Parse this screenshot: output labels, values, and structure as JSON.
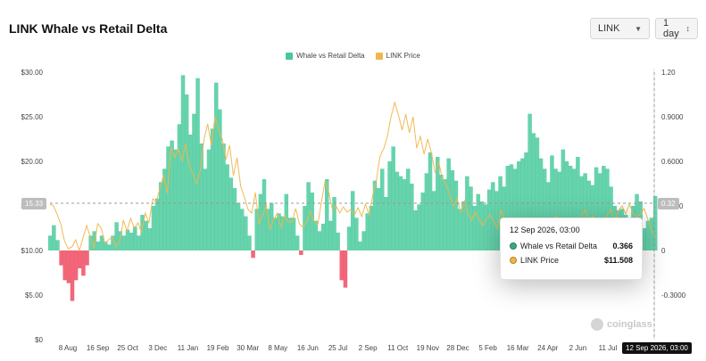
{
  "page": {
    "title": "LINK Whale vs Retail Delta",
    "symbol_select": "LINK",
    "interval_select": "1 day",
    "watermark": "coinglass"
  },
  "legend": [
    {
      "label": "Whale vs Retail Delta",
      "color": "#46c99a"
    },
    {
      "label": "LINK Price",
      "color": "#f0b64c"
    }
  ],
  "crosshair": {
    "left_value": "15.33",
    "right_value": "0.32",
    "date": "12 Sep 2026, 03:00"
  },
  "tooltip": {
    "date": "12 Sep 2026, 03:00",
    "rows": [
      {
        "name": "Whale vs Retail Delta",
        "value": "0.366",
        "color": "#46c99a"
      },
      {
        "name": "LINK Price",
        "value": "$11.508",
        "color": "#f0b64c"
      }
    ]
  },
  "chart_data": {
    "type": "area",
    "left_axis": {
      "label": "LINK Price",
      "ticks": [
        "$30.00",
        "$25.00",
        "$20.00",
        "$15.00",
        "$10.00",
        "$5.00",
        "$0"
      ],
      "range": [
        0,
        30
      ]
    },
    "right_axis": {
      "label": "Whale vs Retail Delta",
      "ticks": [
        "1.20",
        "0.9000",
        "0.6000",
        "0.3000",
        "0",
        "-0.3000"
      ],
      "range": [
        -0.6,
        1.2
      ]
    },
    "x_ticks": [
      "8 Aug",
      "16 Sep",
      "25 Oct",
      "3 Dec",
      "11 Jan",
      "19 Feb",
      "30 Mar",
      "8 May",
      "16 Jun",
      "25 Jul",
      "2 Sep",
      "11 Oct",
      "19 Nov",
      "28 Dec",
      "5 Feb",
      "16 Mar",
      "24 Apr",
      "2 Jun",
      "11 Jul"
    ],
    "series": [
      {
        "name": "Whale vs Retail Delta",
        "color_pos": "#46c99a",
        "color_neg": "#f0566a",
        "values": [
          0.1,
          0.17,
          0.07,
          -0.1,
          -0.2,
          -0.22,
          -0.34,
          -0.2,
          -0.12,
          -0.17,
          -0.1,
          0.1,
          0.13,
          0.06,
          0.1,
          0.06,
          0.04,
          0.1,
          0.19,
          0.13,
          0.1,
          0.14,
          0.12,
          0.16,
          0.1,
          0.24,
          0.2,
          0.15,
          0.3,
          0.35,
          0.46,
          0.55,
          0.7,
          0.74,
          0.68,
          0.85,
          1.18,
          1.05,
          0.78,
          0.92,
          1.16,
          0.72,
          0.55,
          0.68,
          0.82,
          1.13,
          0.95,
          0.72,
          0.58,
          0.49,
          0.42,
          0.32,
          0.28,
          0.23,
          0.1,
          -0.05,
          0.28,
          0.38,
          0.48,
          0.28,
          0.32,
          0.22,
          0.25,
          0.23,
          0.38,
          0.22,
          0.22,
          0.1,
          -0.03,
          0.3,
          0.46,
          0.39,
          0.2,
          0.13,
          0.18,
          0.48,
          0.2,
          0.36,
          0.12,
          -0.2,
          -0.25,
          0.16,
          0.4,
          0.22,
          0.06,
          0.13,
          0.25,
          0.3,
          0.47,
          0.42,
          0.55,
          0.36,
          0.6,
          0.7,
          0.53,
          0.5,
          0.48,
          0.55,
          0.45,
          0.27,
          0.31,
          0.39,
          0.52,
          0.66,
          0.4,
          0.63,
          0.51,
          0.48,
          0.62,
          0.54,
          0.47,
          0.28,
          0.33,
          0.5,
          0.43,
          0.3,
          0.38,
          0.33,
          0.31,
          0.41,
          0.46,
          0.4,
          0.5,
          0.43,
          0.57,
          0.58,
          0.55,
          0.6,
          0.62,
          0.66,
          0.92,
          0.79,
          0.76,
          0.62,
          0.55,
          0.46,
          0.64,
          0.55,
          0.53,
          0.68,
          0.6,
          0.57,
          0.55,
          0.63,
          0.5,
          0.52,
          0.47,
          0.44,
          0.56,
          0.52,
          0.57,
          0.55,
          0.43,
          0.3,
          0.27,
          0.28,
          0.24,
          0.2,
          0.3,
          0.38,
          0.33,
          0.15,
          0.2,
          0.22,
          0.366
        ]
      },
      {
        "name": "LINK Price",
        "color": "#f0b64c",
        "values": [
          15.2,
          15.0,
          14.0,
          12.9,
          11.0,
          10.2,
          10.4,
          11.2,
          10.0,
          11.4,
          12.8,
          11.5,
          10.2,
          13.0,
          12.5,
          10.8,
          11.2,
          11.5,
          10.4,
          11.0,
          13.4,
          12.2,
          13.6,
          12.5,
          13.1,
          12.0,
          14.2,
          13.1,
          15.8,
          15.5,
          17.0,
          18.5,
          16.4,
          21.6,
          20.4,
          21.4,
          20.0,
          22.0,
          19.4,
          18.6,
          17.5,
          19.0,
          22.5,
          24.2,
          21.8,
          25.0,
          23.5,
          22.5,
          20.2,
          21.8,
          18.4,
          20.4,
          17.2,
          16.0,
          14.6,
          14.2,
          16.5,
          13.0,
          14.0,
          15.1,
          12.4,
          13.5,
          14.2,
          12.6,
          13.9,
          13.2,
          13.2,
          14.7,
          13.0,
          12.6,
          13.2,
          14.4,
          13.2,
          12.9,
          15.4,
          17.8,
          16.6,
          14.6,
          15.0,
          14.2,
          14.9,
          14.3,
          14.6,
          14.0,
          14.8,
          13.8,
          15.2,
          14.0,
          16.2,
          17.9,
          20.6,
          21.4,
          22.8,
          25.0,
          26.6,
          25.2,
          23.5,
          25.3,
          23.2,
          25.0,
          21.5,
          22.8,
          20.8,
          22.5,
          21.0,
          18.8,
          19.9,
          18.0,
          17.4,
          16.2,
          15.0,
          15.8,
          14.3,
          15.6,
          14.1,
          13.4,
          14.3,
          13.5,
          12.8,
          13.6,
          14.0,
          13.3,
          12.5,
          14.5,
          13.6,
          11.4,
          10.5,
          8.6,
          8.2,
          8.9,
          8.5,
          8.3,
          8.8,
          10.0,
          11.0,
          12.6,
          12.0,
          12.8,
          13.9,
          13.3,
          12.6,
          12.9,
          13.4,
          12.1,
          13.1,
          13.9,
          14.6,
          13.2,
          13.9,
          12.4,
          13.5,
          12.6,
          14.0,
          14.6,
          13.2,
          14.5,
          15.0,
          14.1,
          15.2,
          14.1,
          13.8,
          14.1,
          14.7,
          13.5,
          12.2,
          11.508
        ]
      }
    ]
  }
}
